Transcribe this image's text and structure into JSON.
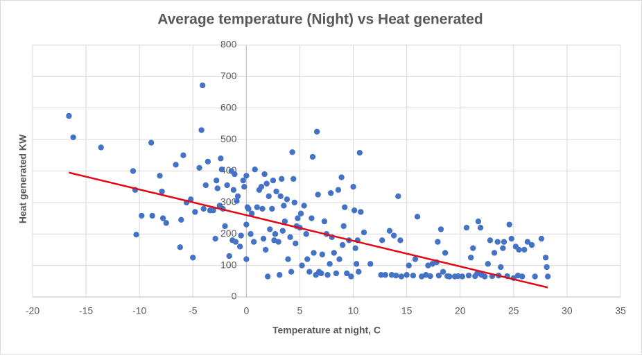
{
  "chart_data": {
    "type": "scatter",
    "title": "Average temperature (Night) vs Heat generated",
    "x_label": "Temperature at night, C",
    "y_label": "Heat generated KW",
    "color": "#4472c4",
    "x": [
      -16.6,
      -16.2,
      -13.6,
      -10.6,
      -10.4,
      -10.3,
      -9.8,
      -8.9,
      -8.8,
      -8.1,
      -7.9,
      -7.8,
      -7.5,
      -6.6,
      -6.2,
      -6.1,
      -5.9,
      -5.6,
      -5.2,
      -5.0,
      -4.8,
      -4.4,
      -4.2,
      -4.1,
      -4.0,
      -3.8,
      -3.6,
      -3.4,
      -3.1,
      -2.9,
      -2.8,
      -2.7,
      -2.5,
      -2.4,
      -2.3,
      -2.2,
      -2.0,
      -1.8,
      -1.6,
      -1.4,
      -1.3,
      -1.2,
      -1.1,
      -1.0,
      -0.9,
      -0.8,
      -0.6,
      -0.5,
      -0.3,
      -0.2,
      0.0,
      0.0,
      0.0,
      0.1,
      0.2,
      0.4,
      0.5,
      0.7,
      0.8,
      1.0,
      1.2,
      1.4,
      1.5,
      1.6,
      1.7,
      1.8,
      1.9,
      2.0,
      2.1,
      2.2,
      2.4,
      2.5,
      2.6,
      2.7,
      2.8,
      3.0,
      3.1,
      3.2,
      3.3,
      3.4,
      3.5,
      3.6,
      3.8,
      3.9,
      4.1,
      4.2,
      4.3,
      4.4,
      4.5,
      4.6,
      4.7,
      4.8,
      5.0,
      5.1,
      5.2,
      5.4,
      5.6,
      5.7,
      5.9,
      6.1,
      6.2,
      6.3,
      6.5,
      6.6,
      6.7,
      6.8,
      7.0,
      7.1,
      7.3,
      7.5,
      7.6,
      7.8,
      7.9,
      8.0,
      8.2,
      8.4,
      8.6,
      8.7,
      8.9,
      9.0,
      9.1,
      9.2,
      9.4,
      9.6,
      9.8,
      10.0,
      10.1,
      10.2,
      10.3,
      10.4,
      10.5,
      10.6,
      10.7,
      11.0,
      11.6,
      12.7,
      13.0,
      13.4,
      13.8,
      14.2,
      14.4,
      14.5,
      15.0,
      15.2,
      15.8,
      16.0,
      16.4,
      17.0,
      17.4,
      17.8,
      17.9,
      18.2,
      18.4,
      18.6,
      19.0,
      19.5,
      20.2,
      20.6,
      21.0,
      21.2,
      21.6,
      21.7,
      21.9,
      22.3,
      22.6,
      22.8,
      23.2,
      23.5,
      23.8,
      24.0,
      24.1,
      24.6,
      24.8,
      25.0,
      25.2,
      25.5,
      25.8,
      26.0,
      26.3,
      26.7,
      27.0,
      27.6,
      28.0,
      28.1,
      28.2,
      12.6,
      13.6,
      14.0,
      15.6,
      16.8,
      17.2,
      18.0,
      18.8,
      19.8,
      20.8,
      21.4,
      22.0,
      23.0,
      23.6,
      24.4,
      25.4
    ],
    "values": [
      575,
      507,
      475,
      400,
      340,
      198,
      258,
      490,
      258,
      385,
      335,
      250,
      235,
      420,
      158,
      245,
      450,
      300,
      310,
      125,
      270,
      410,
      530,
      672,
      280,
      355,
      430,
      275,
      275,
      185,
      370,
      345,
      290,
      440,
      405,
      280,
      225,
      355,
      130,
      400,
      180,
      340,
      390,
      175,
      305,
      320,
      160,
      195,
      370,
      350,
      385,
      230,
      120,
      285,
      280,
      200,
      265,
      175,
      405,
      285,
      340,
      350,
      280,
      185,
      390,
      150,
      360,
      65,
      320,
      215,
      280,
      370,
      180,
      200,
      335,
      175,
      70,
      320,
      375,
      210,
      290,
      240,
      310,
      120,
      190,
      80,
      460,
      375,
      300,
      170,
      225,
      250,
      220,
      265,
      100,
      290,
      200,
      120,
      80,
      250,
      445,
      140,
      70,
      525,
      325,
      80,
      75,
      135,
      240,
      200,
      70,
      105,
      330,
      190,
      140,
      75,
      340,
      120,
      380,
      165,
      225,
      285,
      75,
      180,
      65,
      350,
      275,
      155,
      105,
      180,
      80,
      458,
      270,
      205,
      105,
      180,
      70,
      210,
      195,
      320,
      180,
      65,
      70,
      100,
      120,
      255,
      65,
      100,
      105,
      110,
      175,
      215,
      80,
      140,
      65,
      65,
      65,
      220,
      125,
      155,
      75,
      240,
      220,
      65,
      105,
      180,
      140,
      175,
      95,
      155,
      175,
      230,
      185,
      60,
      160,
      150,
      65,
      150,
      175,
      165,
      65,
      185,
      125,
      95,
      65,
      70,
      70,
      68,
      68,
      70,
      66,
      68,
      66,
      66,
      68,
      66,
      70,
      66,
      68,
      66,
      68
    ],
    "trendline": {
      "x": [
        -16.6,
        28.2
      ],
      "values": [
        395,
        30
      ],
      "color": "#e30613"
    },
    "xlim": [
      -20,
      35
    ],
    "xticks": [
      -20,
      -15,
      -10,
      -5,
      0,
      5,
      10,
      15,
      20,
      25,
      30,
      35
    ],
    "ylim": [
      0,
      800
    ],
    "yticks": [
      0,
      100,
      200,
      300,
      400,
      500,
      600,
      700,
      800
    ],
    "grid": true
  }
}
